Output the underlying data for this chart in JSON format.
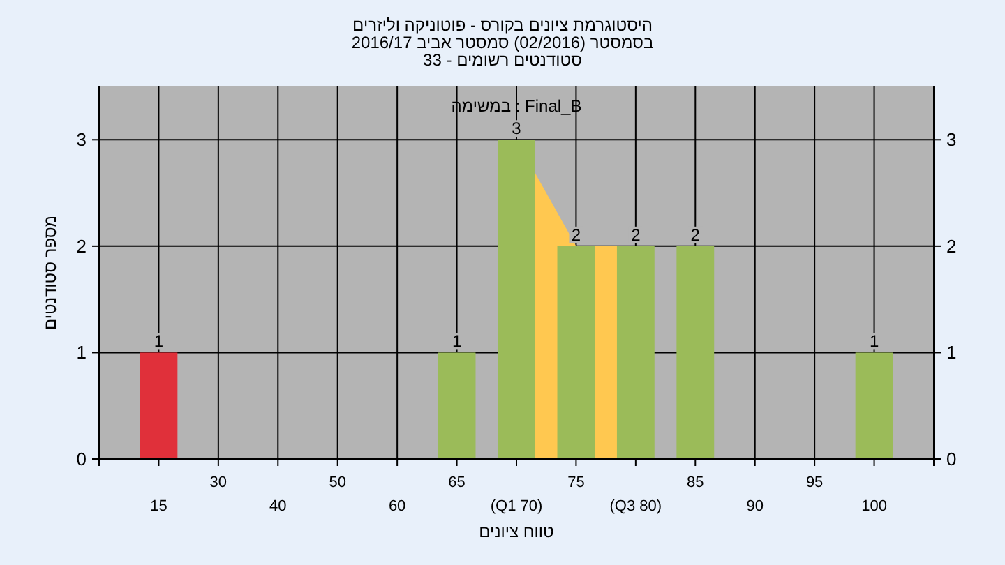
{
  "chart_data": {
    "type": "bar",
    "title": "היסטוגרמת ציונים בקורס - פוטוניקה וליזרים",
    "subtitle": [
      "בסמסטר (02/2016) סמסטר אביב 2016/17",
      "סטודנטים רשומים - 33"
    ],
    "xlabel": "טווח ציונים",
    "ylabel": "מספר סטודנטים",
    "annotations": [
      "Final_B : במשימה"
    ],
    "categories": [
      "15",
      "30",
      "40",
      "50",
      "60",
      "65",
      "(Q1 70)",
      "75",
      "(Q3 80)",
      "85",
      "90",
      "95",
      "100"
    ],
    "series": [
      {
        "type": "area",
        "color": "#ffc850",
        "values": [
          null,
          null,
          null,
          null,
          null,
          null,
          3,
          2,
          2,
          null,
          null,
          null,
          null
        ]
      },
      {
        "colors": [
          "#e0303a",
          "#9bbb59",
          "#9bbb59",
          "#9bbb59",
          "#9bbb59",
          "#9bbb59",
          "#9bbb59",
          "#9bbb59",
          "#9bbb59",
          "#9bbb59",
          "#9bbb59",
          "#9bbb59",
          "#9bbb59"
        ],
        "values": [
          1,
          0,
          0,
          0,
          0,
          1,
          3,
          2,
          2,
          2,
          0,
          0,
          1
        ],
        "value_labels": [
          "1",
          null,
          null,
          null,
          null,
          "1",
          "3",
          "2",
          "2",
          "2",
          null,
          null,
          "1"
        ]
      }
    ],
    "ylim": [
      0,
      3.5
    ],
    "yticks": [
      0,
      1,
      2,
      3
    ],
    "y2lim": [
      0,
      3.5
    ],
    "y2ticks": [
      0,
      1,
      2,
      3
    ],
    "grid": true
  }
}
